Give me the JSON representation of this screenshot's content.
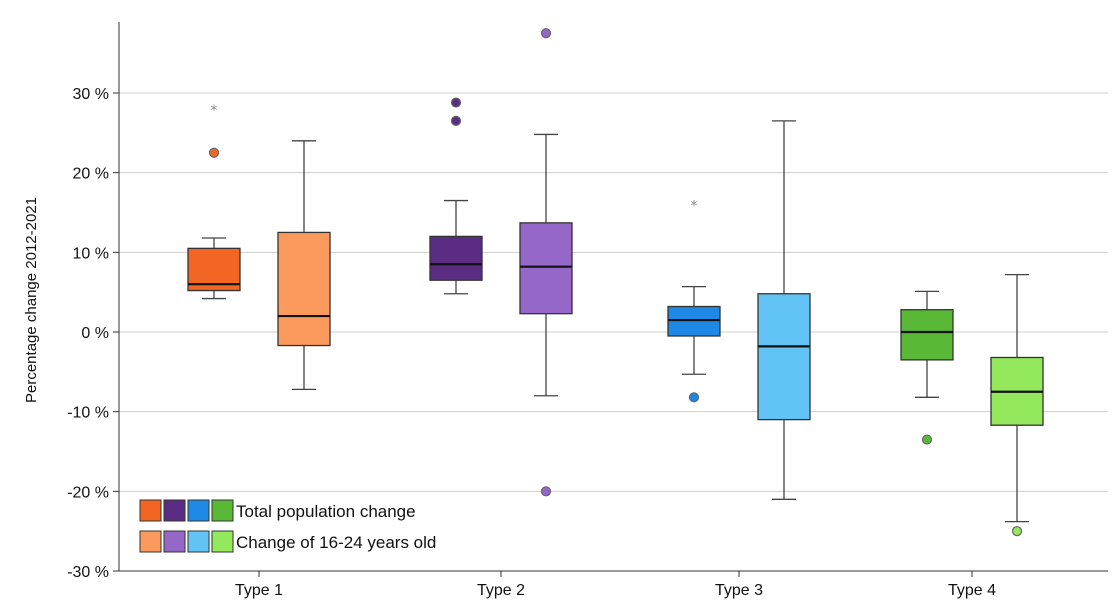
{
  "chart_data": {
    "type": "boxplot",
    "ylabel": "Percentage change 2012-2021",
    "ylim": [
      -30,
      30
    ],
    "yticks": [
      {
        "value": 30,
        "label": "30 %"
      },
      {
        "value": 20,
        "label": "20 %"
      },
      {
        "value": 10,
        "label": "10 %"
      },
      {
        "value": 0,
        "label": "0 %"
      },
      {
        "value": -10,
        "label": "-10 %"
      },
      {
        "value": -20,
        "label": "-20 %"
      },
      {
        "value": -30,
        "label": "-30 %"
      }
    ],
    "grid": true,
    "categories": [
      "Type 1",
      "Type 2",
      "Type 3",
      "Type 4"
    ],
    "series": [
      {
        "name": "Total population change",
        "colors": [
          "#f26522",
          "#5b2c83",
          "#1e88e5",
          "#59b936"
        ],
        "boxes": [
          {
            "category": "Type 1",
            "min": 4.2,
            "q1": 5.2,
            "median": 6.0,
            "q3": 10.5,
            "max": 11.8,
            "outliers": [
              {
                "value": 22.5,
                "shape": "circle"
              },
              {
                "value": 28.0,
                "shape": "star"
              }
            ]
          },
          {
            "category": "Type 2",
            "min": 4.8,
            "q1": 6.5,
            "median": 8.5,
            "q3": 12.0,
            "max": 16.5,
            "outliers": [
              {
                "value": 26.5,
                "shape": "circle"
              },
              {
                "value": 28.8,
                "shape": "circle"
              }
            ]
          },
          {
            "category": "Type 3",
            "min": -5.3,
            "q1": -0.5,
            "median": 1.5,
            "q3": 3.2,
            "max": 5.7,
            "outliers": [
              {
                "value": -8.2,
                "shape": "circle"
              },
              {
                "value": 16.0,
                "shape": "star"
              }
            ]
          },
          {
            "category": "Type 4",
            "min": -8.2,
            "q1": -3.5,
            "median": 0.0,
            "q3": 2.8,
            "max": 5.1,
            "outliers": [
              {
                "value": -13.5,
                "shape": "circle"
              }
            ]
          }
        ]
      },
      {
        "name": "Change of 16-24 years old",
        "colors": [
          "#fb9a5c",
          "#9467c8",
          "#62c3f5",
          "#93e85b"
        ],
        "boxes": [
          {
            "category": "Type 1",
            "min": -7.2,
            "q1": -1.7,
            "median": 2.0,
            "q3": 12.5,
            "max": 24.0,
            "outliers": []
          },
          {
            "category": "Type 2",
            "min": -8.0,
            "q1": 2.3,
            "median": 8.2,
            "q3": 13.7,
            "max": 24.8,
            "outliers": [
              {
                "value": -20.0,
                "shape": "circle"
              },
              {
                "value": 37.5,
                "shape": "circle"
              }
            ]
          },
          {
            "category": "Type 3",
            "min": -21.0,
            "q1": -11.0,
            "median": -1.8,
            "q3": 4.8,
            "max": 26.5,
            "outliers": []
          },
          {
            "category": "Type 4",
            "min": -23.8,
            "q1": -11.7,
            "median": -7.5,
            "q3": -3.2,
            "max": 7.2,
            "outliers": [
              {
                "value": -25.0,
                "shape": "circle"
              }
            ]
          }
        ]
      }
    ],
    "legend": {
      "placement": "bottom-left",
      "entries": [
        "Total population change",
        "Change of 16-24 years old"
      ]
    }
  }
}
